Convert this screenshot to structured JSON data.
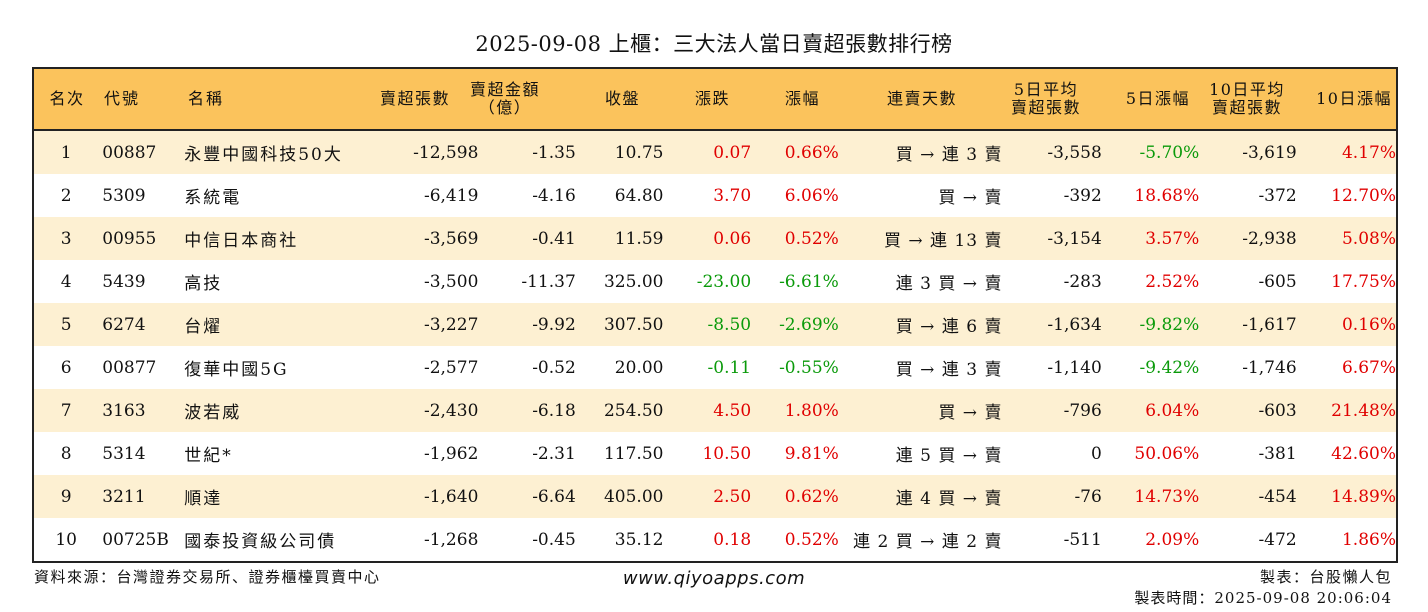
{
  "title": "2025-09-08 上櫃：三大法人當日賣超張數排行榜",
  "headers": {
    "rank": "名次",
    "code": "代號",
    "name": "名稱",
    "sell_lots": "賣超張數",
    "sell_amount_l1": "賣超金額",
    "sell_amount_l2": "（億）",
    "close": "收盤",
    "change": "漲跌",
    "change_pct": "漲幅",
    "streak": "連賣天數",
    "avg5_l1": "5日平均",
    "avg5_l2": "賣超張數",
    "pct5": "5日漲幅",
    "avg10_l1": "10日平均",
    "avg10_l2": "賣超張數",
    "pct10": "10日漲幅"
  },
  "colors": {
    "up": "#e00000",
    "down": "#0a9a0a",
    "header_bg": "#fbc35c",
    "stripe_bg": "#fdf0d2"
  },
  "rows": [
    {
      "rank": "1",
      "code": "00887",
      "name": "永豐中國科技50大",
      "sell_lots": "-12,598",
      "sell_amount": "-1.35",
      "close": "10.75",
      "change": "0.07",
      "change_pct": "0.66%",
      "streak": "買 → 連 3 賣",
      "avg5": "-3,558",
      "pct5": "-5.70%",
      "avg10": "-3,619",
      "pct10": "4.17%"
    },
    {
      "rank": "2",
      "code": "5309",
      "name": "系統電",
      "sell_lots": "-6,419",
      "sell_amount": "-4.16",
      "close": "64.80",
      "change": "3.70",
      "change_pct": "6.06%",
      "streak": "買 → 賣",
      "avg5": "-392",
      "pct5": "18.68%",
      "avg10": "-372",
      "pct10": "12.70%"
    },
    {
      "rank": "3",
      "code": "00955",
      "name": "中信日本商社",
      "sell_lots": "-3,569",
      "sell_amount": "-0.41",
      "close": "11.59",
      "change": "0.06",
      "change_pct": "0.52%",
      "streak": "買 → 連 13 賣",
      "avg5": "-3,154",
      "pct5": "3.57%",
      "avg10": "-2,938",
      "pct10": "5.08%"
    },
    {
      "rank": "4",
      "code": "5439",
      "name": "高技",
      "sell_lots": "-3,500",
      "sell_amount": "-11.37",
      "close": "325.00",
      "change": "-23.00",
      "change_pct": "-6.61%",
      "streak": "連 3 買 → 賣",
      "avg5": "-283",
      "pct5": "2.52%",
      "avg10": "-605",
      "pct10": "17.75%"
    },
    {
      "rank": "5",
      "code": "6274",
      "name": "台燿",
      "sell_lots": "-3,227",
      "sell_amount": "-9.92",
      "close": "307.50",
      "change": "-8.50",
      "change_pct": "-2.69%",
      "streak": "買 → 連 6 賣",
      "avg5": "-1,634",
      "pct5": "-9.82%",
      "avg10": "-1,617",
      "pct10": "0.16%"
    },
    {
      "rank": "6",
      "code": "00877",
      "name": "復華中國5G",
      "sell_lots": "-2,577",
      "sell_amount": "-0.52",
      "close": "20.00",
      "change": "-0.11",
      "change_pct": "-0.55%",
      "streak": "買 → 連 3 賣",
      "avg5": "-1,140",
      "pct5": "-9.42%",
      "avg10": "-1,746",
      "pct10": "6.67%"
    },
    {
      "rank": "7",
      "code": "3163",
      "name": "波若威",
      "sell_lots": "-2,430",
      "sell_amount": "-6.18",
      "close": "254.50",
      "change": "4.50",
      "change_pct": "1.80%",
      "streak": "買 → 賣",
      "avg5": "-796",
      "pct5": "6.04%",
      "avg10": "-603",
      "pct10": "21.48%"
    },
    {
      "rank": "8",
      "code": "5314",
      "name": "世紀*",
      "sell_lots": "-1,962",
      "sell_amount": "-2.31",
      "close": "117.50",
      "change": "10.50",
      "change_pct": "9.81%",
      "streak": "連 5 買 → 賣",
      "avg5": "0",
      "pct5": "50.06%",
      "avg10": "-381",
      "pct10": "42.60%"
    },
    {
      "rank": "9",
      "code": "3211",
      "name": "順達",
      "sell_lots": "-1,640",
      "sell_amount": "-6.64",
      "close": "405.00",
      "change": "2.50",
      "change_pct": "0.62%",
      "streak": "連 4 買 → 賣",
      "avg5": "-76",
      "pct5": "14.73%",
      "avg10": "-454",
      "pct10": "14.89%"
    },
    {
      "rank": "10",
      "code": "00725B",
      "name": "國泰投資級公司債",
      "sell_lots": "-1,268",
      "sell_amount": "-0.45",
      "close": "35.12",
      "change": "0.18",
      "change_pct": "0.52%",
      "streak": "連 2 買 → 連 2 賣",
      "avg5": "-511",
      "pct5": "2.09%",
      "avg10": "-472",
      "pct10": "1.86%"
    }
  ],
  "footer": {
    "source": "資料來源：台灣證券交易所、證券櫃檯買賣中心",
    "url": "www.qiyoapps.com",
    "maker": "製表：台股懶人包",
    "made_time": "製表時間：2025-09-08 20:06:04"
  }
}
